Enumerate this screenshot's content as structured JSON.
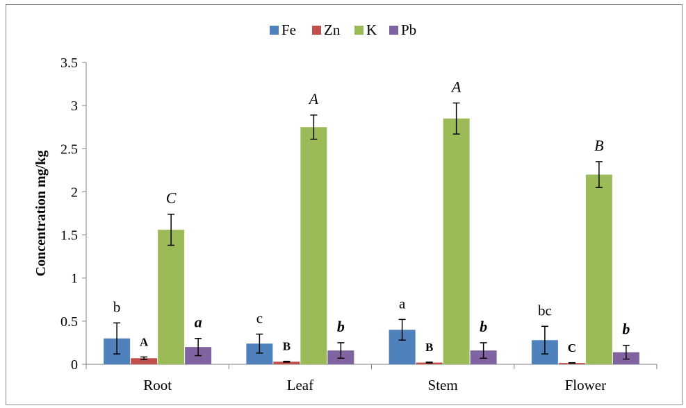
{
  "chart_data": {
    "type": "bar",
    "categories": [
      "Root",
      "Leaf",
      "Stem",
      "Flower"
    ],
    "ylabel": "Concentration mg/kg",
    "xlabel": "",
    "ylim": [
      0,
      3.5
    ],
    "yticks": [
      0,
      0.5,
      1,
      1.5,
      2,
      2.5,
      3,
      3.5
    ],
    "ytick_labels": [
      "0",
      "0.5",
      "1",
      "1.5",
      "2",
      "2.5",
      "3",
      "3.5"
    ],
    "grid": false,
    "legend_position": "top",
    "series": [
      {
        "name": "Fe",
        "color": "#4f81bd",
        "values": [
          0.3,
          0.24,
          0.4,
          0.28
        ],
        "errors": [
          0.18,
          0.11,
          0.12,
          0.16
        ],
        "labels": [
          "b",
          "c",
          "a",
          "bc"
        ],
        "label_style": "normal"
      },
      {
        "name": "Zn",
        "color": "#c0504d",
        "values": [
          0.07,
          0.03,
          0.02,
          0.015
        ],
        "errors": [
          0.015,
          0.005,
          0.005,
          0.003
        ],
        "labels": [
          "A",
          "B",
          "B",
          "C"
        ],
        "label_style": "bold"
      },
      {
        "name": "K",
        "color": "#9bbb59",
        "values": [
          1.56,
          2.75,
          2.85,
          2.2
        ],
        "errors": [
          0.18,
          0.14,
          0.18,
          0.15
        ],
        "labels": [
          "C",
          "A",
          "A",
          "B"
        ],
        "label_style": "italic"
      },
      {
        "name": "Pb",
        "color": "#8064a2",
        "values": [
          0.2,
          0.16,
          0.16,
          0.14
        ],
        "errors": [
          0.1,
          0.09,
          0.09,
          0.08
        ],
        "labels": [
          "a",
          "b",
          "b",
          "b"
        ],
        "label_style": "bold-italic"
      }
    ]
  }
}
